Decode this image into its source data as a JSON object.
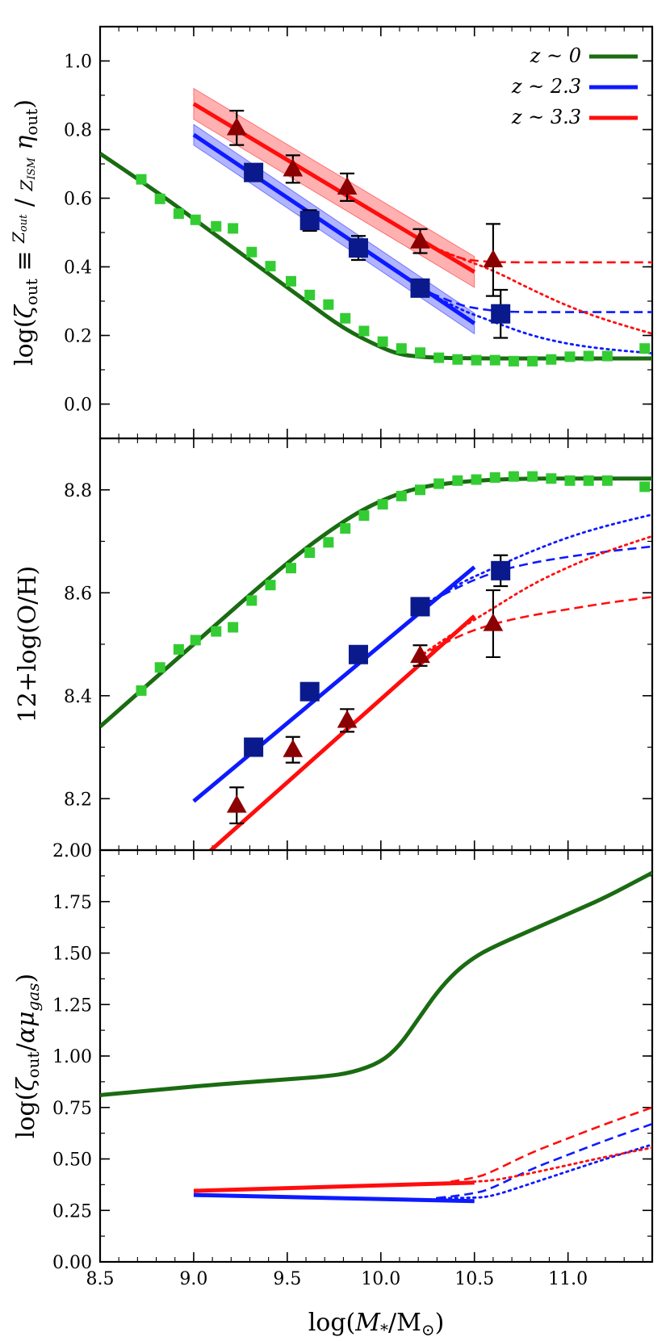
{
  "chart_data": [
    {
      "type": "line",
      "panel": "top",
      "ylabel": "log(ζout ≡ Zout/ZISM ηout)",
      "ylim": [
        -0.1,
        1.1
      ],
      "yticks": [
        "0.0",
        "0.2",
        "0.4",
        "0.6",
        "0.8",
        "1.0"
      ],
      "yticks_values": [
        0.0,
        0.2,
        0.4,
        0.6,
        0.8,
        1.0
      ],
      "legend": {
        "placement": "top-right",
        "entries": [
          {
            "label": "z ~ 0",
            "color": "#1a6b12"
          },
          {
            "label": "z ~ 2.3",
            "color": "#0d1aff"
          },
          {
            "label": "z ~ 3.3",
            "color": "#ff0d0d"
          }
        ]
      },
      "series": [
        {
          "name": "z ~ 0 model",
          "style": "solid",
          "color": "#1a6b12",
          "x": [
            8.5,
            8.8,
            9.0,
            9.2,
            9.4,
            9.6,
            9.8,
            10.0,
            10.1,
            10.2,
            10.3,
            10.5,
            10.8,
            11.0,
            11.2,
            11.45
          ],
          "y": [
            0.73,
            0.62,
            0.54,
            0.46,
            0.38,
            0.3,
            0.22,
            0.165,
            0.145,
            0.138,
            0.135,
            0.133,
            0.133,
            0.133,
            0.133,
            0.133
          ]
        },
        {
          "name": "z ~ 0 data",
          "style": "markers",
          "marker": "square",
          "color": "#33cc33",
          "x": [
            8.72,
            8.82,
            8.92,
            9.01,
            9.12,
            9.21,
            9.31,
            9.41,
            9.52,
            9.62,
            9.72,
            9.81,
            9.91,
            10.01,
            10.11,
            10.21,
            10.31,
            10.41,
            10.51,
            10.61,
            10.71,
            10.81,
            10.91,
            11.01,
            11.11,
            11.21,
            11.41
          ],
          "y": [
            0.655,
            0.598,
            0.555,
            0.537,
            0.518,
            0.512,
            0.443,
            0.402,
            0.358,
            0.318,
            0.29,
            0.25,
            0.213,
            0.182,
            0.162,
            0.15,
            0.135,
            0.13,
            0.128,
            0.128,
            0.125,
            0.125,
            0.13,
            0.138,
            0.14,
            0.14,
            0.162
          ]
        },
        {
          "name": "z ~ 2.3 fit",
          "style": "solid",
          "color": "#0d1aff",
          "band": 0.03,
          "x": [
            9.0,
            10.5
          ],
          "y": [
            0.785,
            0.235
          ]
        },
        {
          "name": "z ~ 2.3 dashed",
          "style": "dashed",
          "color": "#0d1aff",
          "x": [
            10.2,
            10.4,
            10.55,
            10.7,
            11.0,
            11.45
          ],
          "y": [
            0.34,
            0.29,
            0.275,
            0.268,
            0.268,
            0.268
          ]
        },
        {
          "name": "z ~ 2.3 dotted",
          "style": "dotted",
          "color": "#0d1aff",
          "x": [
            10.2,
            10.4,
            10.6,
            10.8,
            11.0,
            11.2,
            11.45
          ],
          "y": [
            0.34,
            0.28,
            0.24,
            0.2,
            0.175,
            0.16,
            0.148
          ]
        },
        {
          "name": "z ~ 2.3 data",
          "style": "markers",
          "marker": "square",
          "color": "#0a1a8c",
          "x": [
            9.32,
            9.62,
            9.88,
            10.21,
            10.64
          ],
          "y": [
            0.675,
            0.535,
            0.455,
            0.338,
            0.263
          ],
          "yerr": [
            0.0,
            0.03,
            0.035,
            0.0,
            0.07
          ]
        },
        {
          "name": "z ~ 3.3 fit",
          "style": "solid",
          "color": "#ff0d0d",
          "band": 0.045,
          "x": [
            9.0,
            10.5
          ],
          "y": [
            0.875,
            0.385
          ]
        },
        {
          "name": "z ~ 3.3 dashed",
          "style": "dashed",
          "color": "#ff0d0d",
          "x": [
            10.2,
            10.4,
            10.55,
            10.7,
            11.0,
            11.45
          ],
          "y": [
            0.475,
            0.425,
            0.415,
            0.413,
            0.413,
            0.413
          ]
        },
        {
          "name": "z ~ 3.3 dotted",
          "style": "dotted",
          "color": "#ff0d0d",
          "x": [
            10.2,
            10.4,
            10.6,
            10.8,
            11.0,
            11.2,
            11.45
          ],
          "y": [
            0.475,
            0.43,
            0.39,
            0.335,
            0.285,
            0.245,
            0.205
          ]
        },
        {
          "name": "z ~ 3.3 data",
          "style": "markers",
          "marker": "triangle",
          "color": "#8b0000",
          "x": [
            9.23,
            9.53,
            9.82,
            10.21,
            10.6
          ],
          "y": [
            0.805,
            0.685,
            0.632,
            0.475,
            0.42
          ],
          "yerr": [
            0.05,
            0.04,
            0.04,
            0.035,
            0.105
          ]
        }
      ]
    },
    {
      "type": "line",
      "panel": "middle",
      "ylabel": "12+log(O/H)",
      "ylim": [
        8.1,
        8.9
      ],
      "yticks": [
        "8.2",
        "8.4",
        "8.6",
        "8.8"
      ],
      "yticks_values": [
        8.2,
        8.4,
        8.6,
        8.8
      ],
      "series": [
        {
          "name": "z ~ 0 model",
          "style": "solid",
          "color": "#1a6b12",
          "x": [
            8.5,
            9.0,
            9.5,
            9.8,
            10.0,
            10.2,
            10.4,
            10.6,
            10.8,
            11.0,
            11.45
          ],
          "y": [
            8.34,
            8.5,
            8.66,
            8.74,
            8.78,
            8.805,
            8.815,
            8.82,
            8.822,
            8.822,
            8.822
          ]
        },
        {
          "name": "z ~ 0 data",
          "style": "markers",
          "marker": "square",
          "color": "#33cc33",
          "x": [
            8.72,
            8.82,
            8.92,
            9.01,
            9.12,
            9.21,
            9.31,
            9.41,
            9.52,
            9.62,
            9.72,
            9.81,
            9.91,
            10.01,
            10.11,
            10.21,
            10.31,
            10.41,
            10.51,
            10.61,
            10.71,
            10.81,
            10.91,
            11.01,
            11.11,
            11.21,
            11.41
          ],
          "y": [
            8.41,
            8.455,
            8.49,
            8.508,
            8.525,
            8.533,
            8.585,
            8.615,
            8.648,
            8.678,
            8.698,
            8.725,
            8.75,
            8.772,
            8.788,
            8.8,
            8.812,
            8.818,
            8.82,
            8.824,
            8.826,
            8.826,
            8.822,
            8.818,
            8.818,
            8.818,
            8.806
          ]
        },
        {
          "name": "z ~ 2.3 fit",
          "style": "solid",
          "color": "#0d1aff",
          "x": [
            9.0,
            10.5
          ],
          "y": [
            8.195,
            8.65
          ]
        },
        {
          "name": "z ~ 2.3 dashed",
          "style": "dashed",
          "color": "#0d1aff",
          "x": [
            10.2,
            10.4,
            10.6,
            10.8,
            11.0,
            11.2,
            11.45
          ],
          "y": [
            8.57,
            8.61,
            8.64,
            8.658,
            8.67,
            8.68,
            8.69
          ]
        },
        {
          "name": "z ~ 2.3 dotted",
          "style": "dotted",
          "color": "#0d1aff",
          "x": [
            10.2,
            10.4,
            10.6,
            10.8,
            11.0,
            11.2,
            11.45
          ],
          "y": [
            8.57,
            8.615,
            8.648,
            8.68,
            8.708,
            8.73,
            8.752
          ]
        },
        {
          "name": "z ~ 2.3 data",
          "style": "markers",
          "marker": "square",
          "color": "#0a1a8c",
          "x": [
            9.32,
            9.62,
            9.88,
            10.21,
            10.64
          ],
          "y": [
            8.3,
            8.408,
            8.48,
            8.573,
            8.643
          ],
          "yerr": [
            0.0,
            0.0,
            0.0,
            0.0,
            0.03
          ]
        },
        {
          "name": "z ~ 3.3 fit",
          "style": "solid",
          "color": "#ff0d0d",
          "x": [
            9.0,
            10.5
          ],
          "y": [
            8.07,
            8.555
          ]
        },
        {
          "name": "z ~ 3.3 dashed",
          "style": "dashed",
          "color": "#ff0d0d",
          "x": [
            10.2,
            10.4,
            10.6,
            10.8,
            11.0,
            11.2,
            11.45
          ],
          "y": [
            8.475,
            8.515,
            8.54,
            8.556,
            8.568,
            8.58,
            8.592
          ]
        },
        {
          "name": "z ~ 3.3 dotted",
          "style": "dotted",
          "color": "#ff0d0d",
          "x": [
            10.2,
            10.4,
            10.6,
            10.8,
            11.0,
            11.2,
            11.45
          ],
          "y": [
            8.475,
            8.525,
            8.57,
            8.615,
            8.65,
            8.68,
            8.71
          ]
        },
        {
          "name": "z ~ 3.3 data",
          "style": "markers",
          "marker": "triangle",
          "color": "#8b0000",
          "x": [
            9.23,
            9.53,
            9.82,
            10.21,
            10.6
          ],
          "y": [
            8.187,
            8.295,
            8.352,
            8.478,
            8.54
          ],
          "yerr": [
            0.035,
            0.025,
            0.022,
            0.02,
            0.065
          ]
        }
      ]
    },
    {
      "type": "line",
      "panel": "bottom",
      "xlabel": "log(M*/M⊙)",
      "ylabel": "log(ζout/αμgas)",
      "ylim": [
        0.0,
        2.0
      ],
      "xlim": [
        8.5,
        11.45
      ],
      "yticks": [
        "0.00",
        "0.25",
        "0.50",
        "0.75",
        "1.00",
        "1.25",
        "1.50",
        "1.75",
        "2.00"
      ],
      "yticks_values": [
        0.0,
        0.25,
        0.5,
        0.75,
        1.0,
        1.25,
        1.5,
        1.75,
        2.0
      ],
      "xticks": [
        "8.5",
        "9.0",
        "9.5",
        "10.0",
        "10.5",
        "11.0"
      ],
      "xticks_values": [
        8.5,
        9.0,
        9.5,
        10.0,
        10.5,
        11.0
      ],
      "series": [
        {
          "name": "z ~ 0 model",
          "style": "solid",
          "color": "#1a6b12",
          "x": [
            8.5,
            8.8,
            9.1,
            9.4,
            9.7,
            9.85,
            10.0,
            10.1,
            10.2,
            10.3,
            10.4,
            10.5,
            10.6,
            10.8,
            11.0,
            11.2,
            11.45
          ],
          "y": [
            0.81,
            0.835,
            0.86,
            0.88,
            0.9,
            0.92,
            0.97,
            1.05,
            1.18,
            1.31,
            1.41,
            1.48,
            1.53,
            1.61,
            1.69,
            1.77,
            1.89
          ]
        },
        {
          "name": "z ~ 2.3 fit",
          "style": "solid",
          "color": "#0d1aff",
          "x": [
            9.0,
            10.5
          ],
          "y": [
            0.325,
            0.295
          ]
        },
        {
          "name": "z ~ 2.3 dashed",
          "style": "dashed",
          "color": "#0d1aff",
          "x": [
            10.3,
            10.5,
            10.6,
            10.8,
            11.0,
            11.2,
            11.45
          ],
          "y": [
            0.31,
            0.33,
            0.36,
            0.45,
            0.52,
            0.59,
            0.67
          ]
        },
        {
          "name": "z ~ 2.3 dotted",
          "style": "dotted",
          "color": "#0d1aff",
          "x": [
            10.3,
            10.5,
            10.6,
            10.8,
            11.0,
            11.2,
            11.45
          ],
          "y": [
            0.31,
            0.31,
            0.32,
            0.38,
            0.44,
            0.5,
            0.57
          ]
        },
        {
          "name": "z ~ 3.3 fit",
          "style": "solid",
          "color": "#ff0d0d",
          "x": [
            9.0,
            10.5
          ],
          "y": [
            0.345,
            0.385
          ]
        },
        {
          "name": "z ~ 3.3 dashed",
          "style": "dashed",
          "color": "#ff0d0d",
          "x": [
            10.3,
            10.5,
            10.6,
            10.8,
            11.0,
            11.2,
            11.45
          ],
          "y": [
            0.38,
            0.405,
            0.44,
            0.53,
            0.6,
            0.67,
            0.75
          ]
        },
        {
          "name": "z ~ 3.3 dotted",
          "style": "dotted",
          "color": "#ff0d0d",
          "x": [
            10.3,
            10.5,
            10.6,
            10.8,
            11.0,
            11.2,
            11.45
          ],
          "y": [
            0.38,
            0.39,
            0.395,
            0.43,
            0.47,
            0.51,
            0.555
          ]
        }
      ]
    }
  ]
}
